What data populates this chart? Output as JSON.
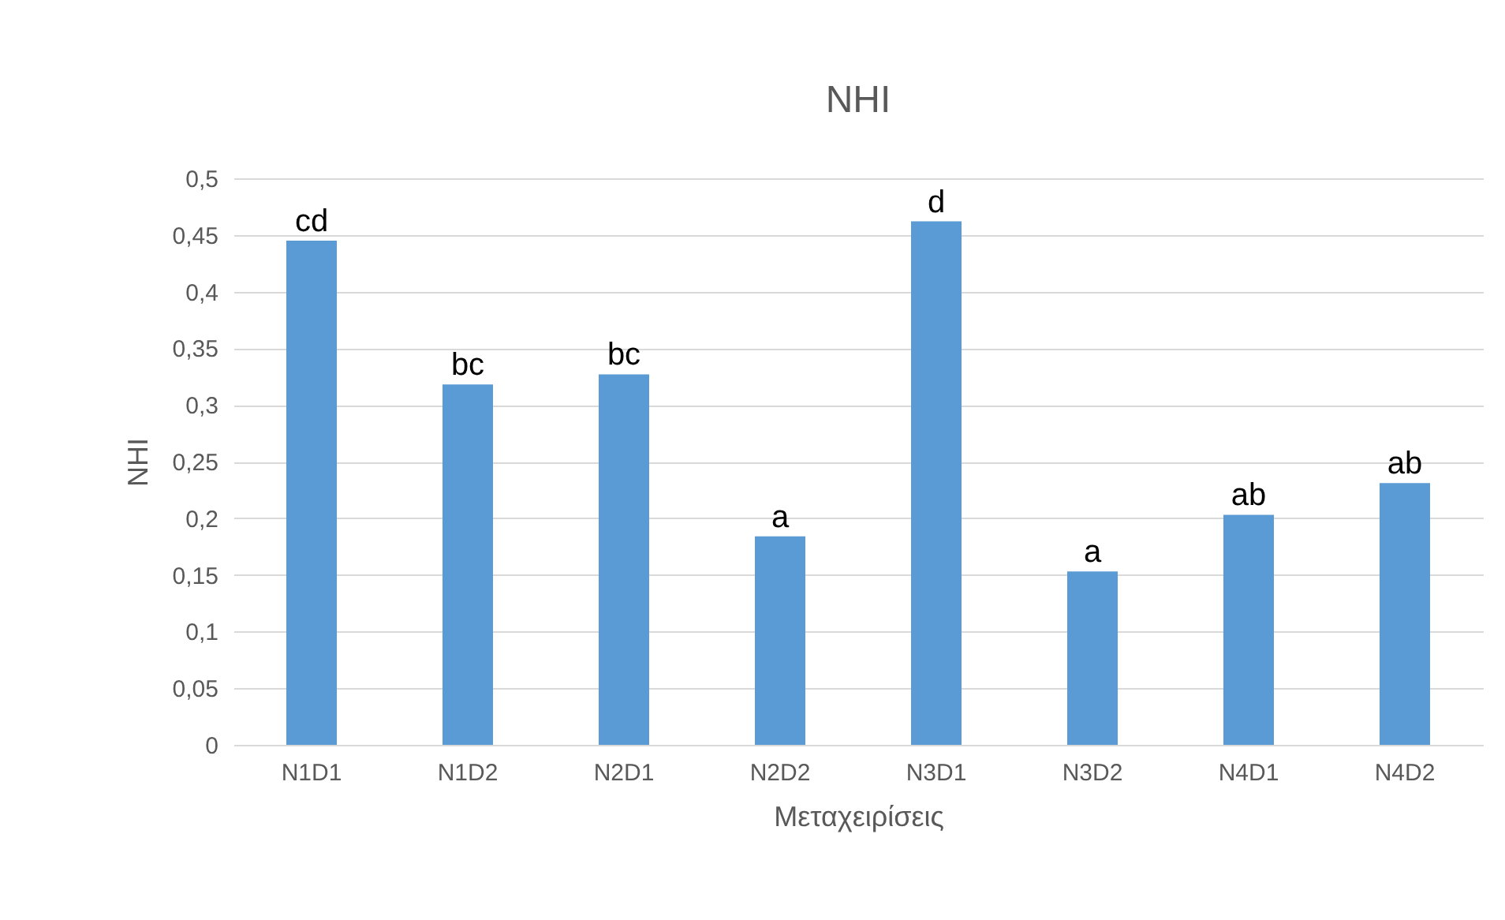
{
  "chart_data": {
    "type": "bar",
    "title": "NHI",
    "xlabel": "Μεταχειρίσεις",
    "ylabel": "NHI",
    "categories": [
      "N1D1",
      "N1D2",
      "N2D1",
      "N2D2",
      "N3D1",
      "N3D2",
      "N4D1",
      "N4D2"
    ],
    "series": [
      {
        "color": "#5b9bd5",
        "values": [
          0.445,
          0.318,
          0.327,
          0.184,
          0.462,
          0.153,
          0.203,
          0.231
        ]
      }
    ],
    "ylim": [
      0,
      0.5
    ],
    "yticks": [
      0,
      {
        "value": 0.05,
        "label": "0,05"
      },
      {
        "value": 0.1,
        "label": "0,1"
      },
      {
        "value": 0.15,
        "label": "0,15"
      },
      {
        "value": 0.2,
        "label": "0,2"
      },
      {
        "value": 0.25,
        "label": "0,25"
      },
      {
        "value": 0.3,
        "label": "0,3"
      },
      {
        "value": 0.35,
        "label": "0,35"
      },
      {
        "value": 0.4,
        "label": "0,4"
      },
      {
        "value": 0.45,
        "label": "0,45"
      },
      {
        "value": 0.5,
        "label": "0,5"
      }
    ],
    "grid": "y",
    "legend": false,
    "annotations": [
      {
        "text": "cd",
        "x": "N1D1",
        "y": 0.445
      },
      {
        "text": "bc",
        "x": "N1D2",
        "y": 0.318
      },
      {
        "text": "bc",
        "x": "N2D1",
        "y": 0.327
      },
      {
        "text": "a",
        "x": "N2D2",
        "y": 0.184
      },
      {
        "text": "d",
        "x": "N3D1",
        "y": 0.462
      },
      {
        "text": "a",
        "x": "N3D2",
        "y": 0.153
      },
      {
        "text": "ab",
        "x": "N4D1",
        "y": 0.203
      },
      {
        "text": "ab",
        "x": "N4D2",
        "y": 0.231
      }
    ]
  }
}
